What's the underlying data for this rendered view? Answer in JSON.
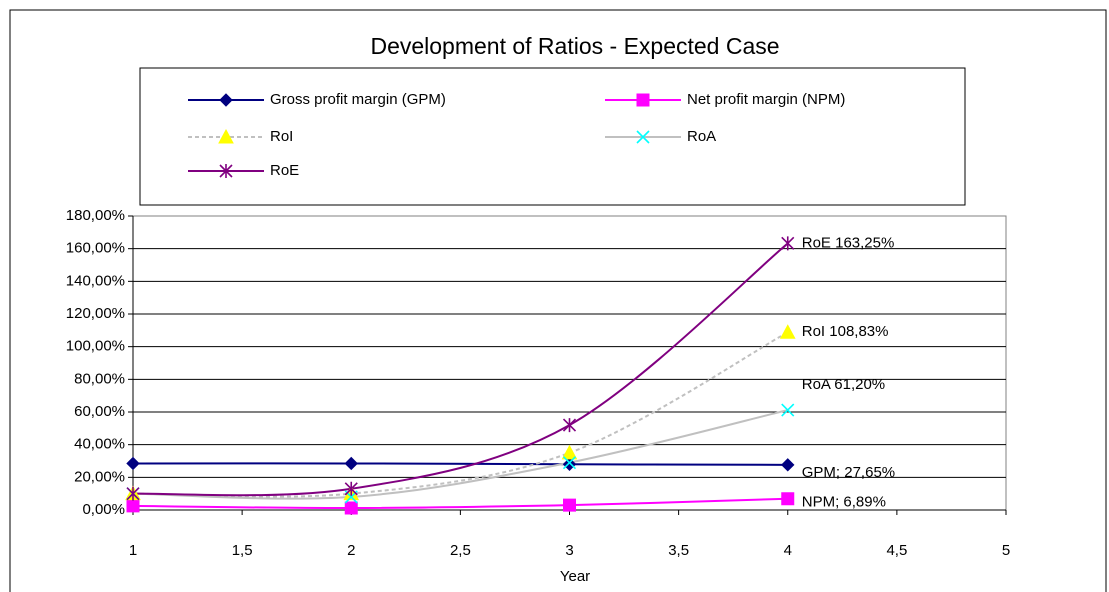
{
  "chart_data": {
    "type": "line",
    "title": "Development of Ratios - Expected Case",
    "x_label": "Year",
    "x": [
      1,
      2,
      3,
      4
    ],
    "xlim": [
      1,
      5
    ],
    "xticks": [
      1,
      {
        "value": 1.5,
        "label": "1,5"
      },
      2,
      {
        "value": 2.5,
        "label": "2,5"
      },
      3,
      {
        "value": 3.5,
        "label": "3,5"
      },
      4,
      {
        "value": 4.5,
        "label": "4,5"
      },
      5
    ],
    "ylim": [
      0,
      180
    ],
    "yticks": [
      {
        "value": 0,
        "label": "0,00%"
      },
      {
        "value": 20,
        "label": "20,00%"
      },
      {
        "value": 40,
        "label": "40,00%"
      },
      {
        "value": 60,
        "label": "60,00%"
      },
      {
        "value": 80,
        "label": "80,00%"
      },
      {
        "value": 100,
        "label": "100,00%"
      },
      {
        "value": 120,
        "label": "120,00%"
      },
      {
        "value": 140,
        "label": "140,00%"
      },
      {
        "value": 160,
        "label": "160,00%"
      },
      {
        "value": 180,
        "label": "180,00%"
      }
    ],
    "grid": true,
    "legend": "top",
    "series": [
      {
        "name": "Gross profit margin (GPM)",
        "color": "#000080",
        "marker": "diamond",
        "marker_color": "#000080",
        "dash": false,
        "values": [
          28.5,
          28.5,
          28,
          27.65
        ],
        "value_labels": [
          null,
          null,
          null,
          "GPM; 27,65%"
        ]
      },
      {
        "name": "Net profit margin (NPM)",
        "color": "#ff00ff",
        "marker": "square",
        "marker_color": "#ff00ff",
        "dash": false,
        "values": [
          2.5,
          1.2,
          3,
          6.89
        ],
        "value_labels": [
          null,
          null,
          null,
          "NPM; 6,89%"
        ]
      },
      {
        "name": "RoI",
        "color": "#c0c0c0",
        "marker": "triangle",
        "marker_color": "#ffff00",
        "dash": true,
        "values": [
          10,
          10,
          35,
          108.83
        ],
        "value_labels": [
          null,
          null,
          null,
          "RoI 108,83%"
        ]
      },
      {
        "name": "RoA",
        "color": "#c0c0c0",
        "marker": "x",
        "marker_color": "#00ffff",
        "dash": false,
        "values": [
          10,
          8,
          29,
          61.2
        ],
        "value_labels": [
          null,
          null,
          null,
          "RoA 61,20%"
        ]
      },
      {
        "name": "RoE",
        "color": "#800080",
        "marker": "star",
        "marker_color": "#800080",
        "dash": false,
        "values": [
          10,
          13,
          52,
          163.25
        ],
        "value_labels": [
          null,
          null,
          null,
          "RoE 163,25%"
        ]
      }
    ]
  }
}
